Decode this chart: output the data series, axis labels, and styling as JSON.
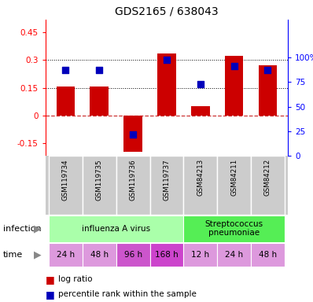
{
  "title": "GDS2165 / 638043",
  "samples": [
    "GSM119734",
    "GSM119735",
    "GSM119736",
    "GSM119737",
    "GSM84213",
    "GSM84211",
    "GSM84212"
  ],
  "log_ratios": [
    0.155,
    0.155,
    -0.2,
    0.335,
    0.05,
    0.325,
    0.27
  ],
  "percentile_ranks": [
    87,
    87,
    22,
    98,
    73,
    91,
    87
  ],
  "left_ylim": [
    -0.22,
    0.52
  ],
  "right_ylim": [
    0,
    138.67
  ],
  "left_yticks": [
    -0.15,
    0.0,
    0.15,
    0.3,
    0.45
  ],
  "right_yticks": [
    0,
    25,
    50,
    75,
    100
  ],
  "bar_color": "#cc0000",
  "dot_color": "#0000bb",
  "zero_line_color": "#cc3333",
  "dotted_line_color": "#000000",
  "infection_groups": [
    {
      "label": "influenza A virus",
      "start": 0,
      "end": 4,
      "color": "#aaffaa"
    },
    {
      "label": "Streptococcus\npneumoniae",
      "start": 4,
      "end": 7,
      "color": "#55ee55"
    }
  ],
  "time_labels": [
    "24 h",
    "48 h",
    "96 h",
    "168 h",
    "12 h",
    "24 h",
    "48 h"
  ],
  "time_colors": [
    "#dd99dd",
    "#dd99dd",
    "#cc55cc",
    "#cc44cc",
    "#dd99dd",
    "#dd99dd",
    "#dd99dd"
  ],
  "infection_label": "infection",
  "time_label": "time",
  "legend_red": "log ratio",
  "legend_blue": "percentile rank within the sample",
  "bar_width": 0.55,
  "figsize": [
    3.98,
    3.84
  ],
  "dpi": 100
}
